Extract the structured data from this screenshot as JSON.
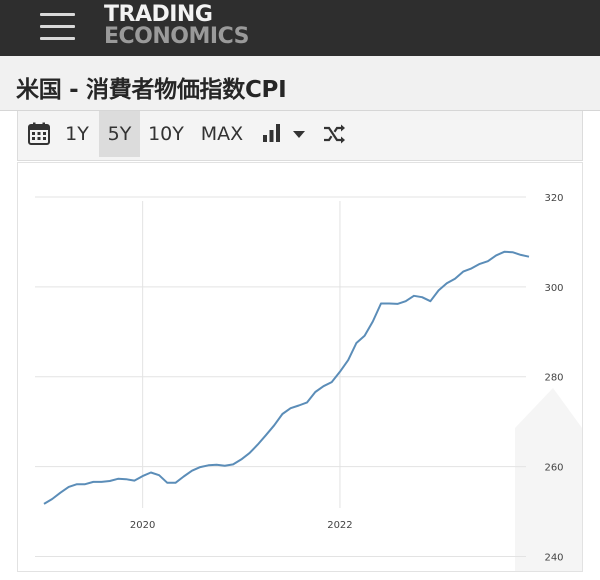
{
  "header": {
    "logo_line1": "TRADING",
    "logo_line2": "ECONOMICS",
    "menu_icon": "hamburger-menu-icon"
  },
  "page": {
    "title": "米国 - 消費者物価指数CPI"
  },
  "toolbar": {
    "calendar_icon": "calendar-icon",
    "ranges": [
      "1Y",
      "5Y",
      "10Y",
      "MAX"
    ],
    "selected_range": "5Y",
    "chart_type_icon": "bar-chart-icon",
    "dropdown_icon": "caret-down-icon",
    "compare_icon": "shuffle-icon"
  },
  "colors": {
    "topbar": "#2e2e2e",
    "line": "#5b8db8",
    "grid": "#e3e3e3"
  },
  "chart_data": {
    "type": "line",
    "title": "",
    "xlabel": "",
    "ylabel": "",
    "ylim": [
      237,
      326
    ],
    "yticks": [
      240,
      260,
      280,
      300,
      320
    ],
    "xtick_labels": [
      "2020",
      "2022"
    ],
    "grid": true,
    "y_axis_side": "right",
    "series": [
      {
        "x": [
          "2019-01",
          "2019-02",
          "2019-03",
          "2019-04",
          "2019-05",
          "2019-06",
          "2019-07",
          "2019-08",
          "2019-09",
          "2019-10",
          "2019-11",
          "2019-12",
          "2020-01",
          "2020-02",
          "2020-03",
          "2020-04",
          "2020-05",
          "2020-06",
          "2020-07",
          "2020-08",
          "2020-09",
          "2020-10",
          "2020-11",
          "2020-12",
          "2021-01",
          "2021-02",
          "2021-03",
          "2021-04",
          "2021-05",
          "2021-06",
          "2021-07",
          "2021-08",
          "2021-09",
          "2021-10",
          "2021-11",
          "2021-12",
          "2022-01",
          "2022-02",
          "2022-03",
          "2022-04",
          "2022-05",
          "2022-06",
          "2022-07",
          "2022-08",
          "2022-09",
          "2022-10",
          "2022-11",
          "2022-12",
          "2023-01",
          "2023-02",
          "2023-03",
          "2023-04",
          "2023-05",
          "2023-06",
          "2023-07",
          "2023-08",
          "2023-09",
          "2023-10",
          "2023-11",
          "2023-12"
        ],
        "values": [
          251.7,
          252.8,
          254.2,
          255.5,
          256.1,
          256.1,
          256.6,
          256.6,
          256.8,
          257.3,
          257.2,
          256.9,
          257.9,
          258.7,
          258.1,
          256.4,
          256.4,
          257.8,
          259.1,
          259.9,
          260.3,
          260.4,
          260.2,
          260.5,
          261.6,
          263.0,
          264.9,
          267.0,
          269.2,
          271.7,
          273.0,
          273.6,
          274.3,
          276.6,
          277.9,
          278.8,
          281.1,
          283.7,
          287.5,
          289.1,
          292.3,
          296.3,
          296.3,
          296.2,
          296.8,
          298.0,
          297.7,
          296.8,
          299.2,
          300.8,
          301.8,
          303.4,
          304.1,
          305.1,
          305.7,
          307.0,
          307.8,
          307.7,
          307.1,
          306.7
        ]
      }
    ]
  }
}
